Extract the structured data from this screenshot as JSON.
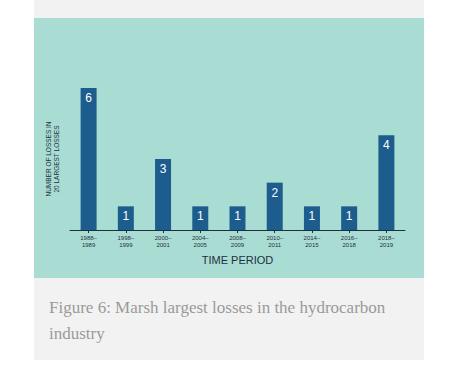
{
  "chart_data": {
    "type": "bar",
    "title": "Figure 6: Marsh largest losses in the hydrocarbon industry",
    "x_label": "TIME PERIOD",
    "y_label": "NUMBER OF LOSSES IN 20 LARGEST LOSSES",
    "categories": [
      "1988–1989",
      "1998–1999",
      "2000–2001",
      "2004–2005",
      "2008–2009",
      "2010–2011",
      "2014–2015",
      "2016–2018",
      "2018–2019"
    ],
    "values": [
      6,
      1,
      3,
      1,
      1,
      2,
      1,
      1,
      4
    ],
    "color": "#1c5d8e",
    "ylim": [
      0,
      6
    ],
    "grid": false,
    "data_labels": true,
    "tick_labels": "x"
  }
}
